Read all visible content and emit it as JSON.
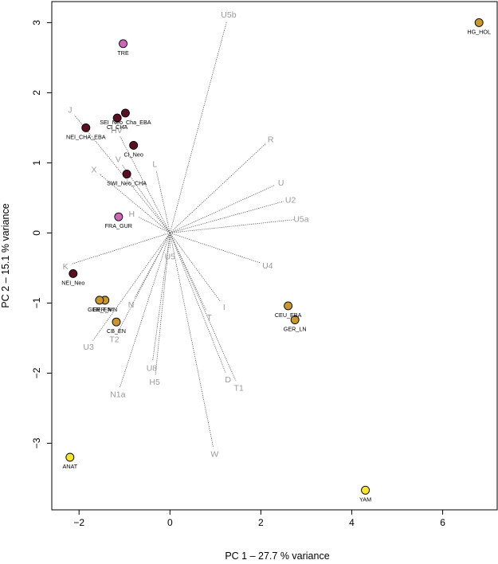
{
  "chart_data": {
    "type": "scatter",
    "subtype": "pca-biplot",
    "xlabel": "PC 1 –  27.7 % variance",
    "ylabel": "PC 2 –  15.1 % variance",
    "xlim": [
      -2.6,
      7.2
    ],
    "ylim": [
      -3.95,
      3.3
    ],
    "xticks": [
      -2,
      0,
      2,
      4,
      6
    ],
    "yticks": [
      -3,
      -2,
      -1,
      0,
      1,
      2,
      3
    ],
    "origin": [
      0,
      0
    ],
    "points": [
      {
        "label": "HG_HOL",
        "x": 6.8,
        "y": 3.0,
        "color": "#c8962a"
      },
      {
        "label": "TRE",
        "x": -1.03,
        "y": 2.7,
        "color": "#cc66b8"
      },
      {
        "label": "SEI_Neo_Cha_EBA",
        "x": -0.98,
        "y": 1.71,
        "color": "#5c0e22"
      },
      {
        "label": "CI_CHA",
        "x": -1.16,
        "y": 1.64,
        "color": "#5c0e22"
      },
      {
        "label": "NEI_CHA_EBA",
        "x": -1.85,
        "y": 1.5,
        "color": "#5c0e22"
      },
      {
        "label": "CI_Neo",
        "x": -0.8,
        "y": 1.25,
        "color": "#5c0e22"
      },
      {
        "label": "SWI_Neo_CHA",
        "x": -0.95,
        "y": 0.84,
        "color": "#5c0e22"
      },
      {
        "label": "FRA_GUR",
        "x": -1.13,
        "y": 0.23,
        "color": "#cc66b8"
      },
      {
        "label": "NEI_Neo",
        "x": -2.13,
        "y": -0.58,
        "color": "#5c0e22"
      },
      {
        "label": "GER_MN",
        "x": -1.43,
        "y": -0.96,
        "color": "#c8962a"
      },
      {
        "label": "GER_EN",
        "x": -1.55,
        "y": -0.96,
        "color": "#c8962a"
      },
      {
        "label": "CB_EN",
        "x": -1.18,
        "y": -1.27,
        "color": "#c8962a"
      },
      {
        "label": "CEU_EBA",
        "x": 2.6,
        "y": -1.04,
        "color": "#c8962a"
      },
      {
        "label": "GER_LN",
        "x": 2.75,
        "y": -1.24,
        "color": "#c8962a"
      },
      {
        "label": "ANAT",
        "x": -2.2,
        "y": -3.2,
        "color": "#f5e62a"
      },
      {
        "label": "YAM",
        "x": 4.3,
        "y": -3.67,
        "color": "#f5e62a"
      }
    ],
    "loadings": [
      {
        "label": "U5b",
        "x": 1.25,
        "y": 3.02
      },
      {
        "label": "R",
        "x": 2.1,
        "y": 1.27
      },
      {
        "label": "U",
        "x": 2.3,
        "y": 0.68
      },
      {
        "label": "U2",
        "x": 2.5,
        "y": 0.45
      },
      {
        "label": "U5a",
        "x": 2.73,
        "y": 0.19
      },
      {
        "label": "U4",
        "x": 2.0,
        "y": -0.43
      },
      {
        "label": "I",
        "x": 1.1,
        "y": -0.97
      },
      {
        "label": "T",
        "x": 0.8,
        "y": -1.11
      },
      {
        "label": "D",
        "x": 1.22,
        "y": -1.99
      },
      {
        "label": "T1",
        "x": 1.45,
        "y": -2.11
      },
      {
        "label": "W",
        "x": 0.95,
        "y": -3.05
      },
      {
        "label": "U5",
        "x": 0.0,
        "y": -0.23
      },
      {
        "label": "N",
        "x": -0.78,
        "y": -0.93
      },
      {
        "label": "U3",
        "x": -1.7,
        "y": -1.54
      },
      {
        "label": "T2",
        "x": -1.15,
        "y": -1.42
      },
      {
        "label": "U8",
        "x": -0.38,
        "y": -1.82
      },
      {
        "label": "H5",
        "x": -0.32,
        "y": -2.02
      },
      {
        "label": "N1a",
        "x": -1.1,
        "y": -2.2
      },
      {
        "label": "K",
        "x": -2.15,
        "y": -0.44
      },
      {
        "label": "H",
        "x": -0.7,
        "y": 0.23
      },
      {
        "label": "L",
        "x": -0.3,
        "y": 0.89
      },
      {
        "label": "X",
        "x": -1.55,
        "y": 0.84
      },
      {
        "label": "V",
        "x": -1.05,
        "y": 0.97
      },
      {
        "label": "HV",
        "x": -1.1,
        "y": 1.38
      },
      {
        "label": "J",
        "x": -2.1,
        "y": 1.68
      }
    ]
  }
}
